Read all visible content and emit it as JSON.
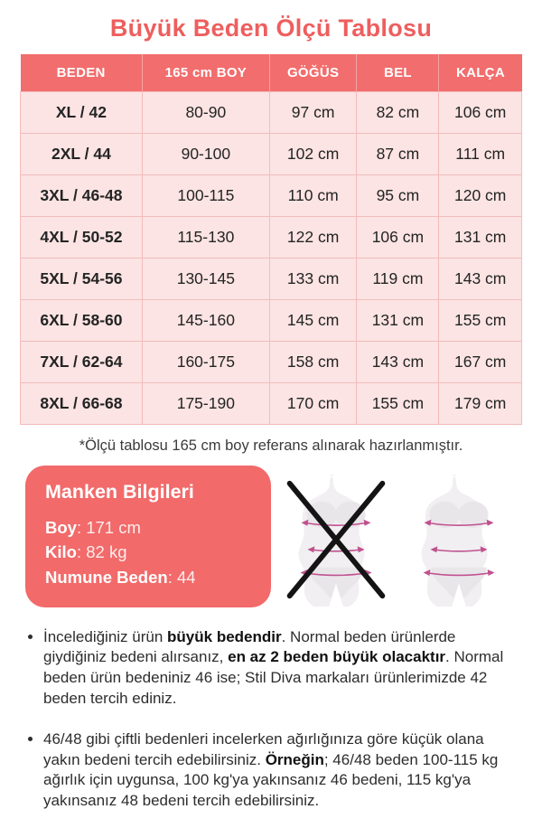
{
  "title": "Büyük Beden Ölçü Tablosu",
  "table": {
    "headers": [
      "BEDEN",
      "165 cm BOY",
      "GÖĞÜS",
      "BEL",
      "KALÇA"
    ],
    "rows": [
      [
        "XL / 42",
        "80-90",
        "97 cm",
        "82 cm",
        "106 cm"
      ],
      [
        "2XL / 44",
        "90-100",
        "102 cm",
        "87 cm",
        "111 cm"
      ],
      [
        "3XL / 46-48",
        "100-115",
        "110 cm",
        "95 cm",
        "120 cm"
      ],
      [
        "4XL / 50-52",
        "115-130",
        "122 cm",
        "106 cm",
        "131 cm"
      ],
      [
        "5XL / 54-56",
        "130-145",
        "133 cm",
        "119 cm",
        "143 cm"
      ],
      [
        "6XL / 58-60",
        "145-160",
        "145 cm",
        "131 cm",
        "155 cm"
      ],
      [
        "7XL / 62-64",
        "160-175",
        "158 cm",
        "143 cm",
        "167 cm"
      ],
      [
        "8XL / 66-68",
        "175-190",
        "170 cm",
        "155 cm",
        "179 cm"
      ]
    ]
  },
  "footnote": "*Ölçü tablosu 165 cm boy referans alınarak hazırlanmıştır.",
  "model_info": {
    "title": "Manken Bilgileri",
    "rows": [
      {
        "label": "Boy",
        "value": ": 171 cm"
      },
      {
        "label": "Kilo",
        "value": ": 82 kg"
      },
      {
        "label": "Numune Beden",
        "value": ": 44"
      }
    ]
  },
  "figures": {
    "wrong_icon": "crossed-out-body-silhouette",
    "correct_icon": "body-silhouette-with-measurement-lines"
  },
  "notes": [
    {
      "segments": [
        {
          "text": "İncelediğiniz ürün ",
          "bold": false
        },
        {
          "text": "büyük bedendir",
          "bold": true
        },
        {
          "text": ". Normal beden ürünlerde giydiğiniz bedeni alırsanız, ",
          "bold": false
        },
        {
          "text": "en az 2 beden büyük olacaktır",
          "bold": true
        },
        {
          "text": ". Normal beden ürün bedeniniz 46 ise; Stil Diva markaları ürünlerimizde 42 beden tercih ediniz.",
          "bold": false
        }
      ]
    },
    {
      "segments": [
        {
          "text": "46/48 gibi çiftli bedenleri incelerken ağırlığınıza göre küçük olana yakın bedeni tercih edebilirsiniz. ",
          "bold": false
        },
        {
          "text": "Örneğin",
          "bold": true
        },
        {
          "text": "; 46/48 beden 100-115 kg ağırlık için uygunsa, 100 kg'ya yakınsanız 46 bedeni, 115 kg'ya yakınsanız 48 bedeni tercih edebilirsiniz.",
          "bold": false
        }
      ]
    }
  ],
  "colors": {
    "accent": "#ee5e5e",
    "header_bg": "#f26d6d",
    "card_bg": "#f26a6a",
    "row_bg": "#fbe4e3",
    "row_border": "#f2bcbc",
    "text_dark": "#2d2d2d",
    "measure_line": "#c0518f"
  }
}
